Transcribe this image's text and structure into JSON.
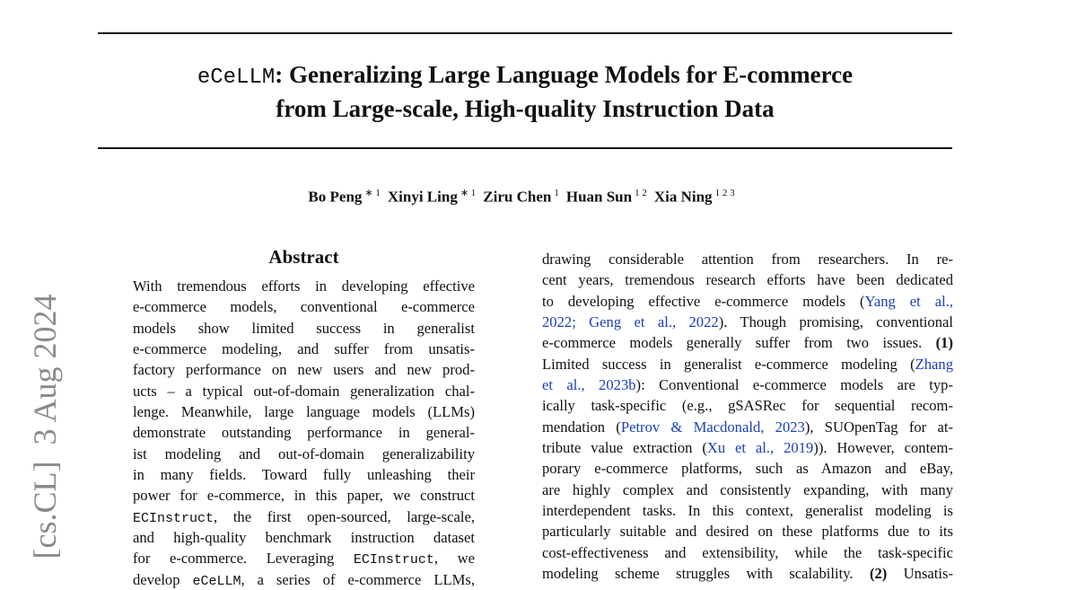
{
  "sidebar": "[cs.CL]  3 Aug 2024",
  "title": {
    "code": "eCeLLM",
    "line1": ": Generalizing Large Language Models for E-commerce",
    "line2": "from Large-scale, High-quality Instruction Data"
  },
  "authors": [
    {
      "name": "Bo Peng",
      "affil": "∗ 1"
    },
    {
      "name": "Xinyi Ling",
      "affil": "∗ 1"
    },
    {
      "name": "Ziru Chen",
      "affil": "1"
    },
    {
      "name": "Huan Sun",
      "affil": "1 2"
    },
    {
      "name": "Xia Ning",
      "affil": "1 2 3"
    }
  ],
  "abstract": {
    "heading": "Abstract",
    "lines": [
      [
        "With tremendous efforts in developing effective"
      ],
      [
        "e-commerce models, conventional e-commerce"
      ],
      [
        "models show limited success in generalist"
      ],
      [
        "e-commerce modeling, and suffer from unsatis-"
      ],
      [
        "factory performance on new users and new prod-"
      ],
      [
        "ucts – a typical out-of-domain generalization chal-"
      ],
      [
        "lenge. Meanwhile, large language models (LLMs)"
      ],
      [
        "demonstrate outstanding performance in general-"
      ],
      [
        "ist modeling and out-of-domain generalizability"
      ],
      [
        "in many fields.  Toward fully unleashing their"
      ],
      [
        "power for e-commerce, in this paper, we construct"
      ],
      [
        {
          "code": "ECInstruct"
        },
        ", the first open-sourced, large-scale,"
      ],
      [
        "and high-quality benchmark instruction dataset"
      ],
      [
        "for e-commerce.  Leveraging ",
        {
          "code": "ECInstruct"
        },
        ", we"
      ],
      [
        "develop ",
        {
          "code": "eCeLLM"
        },
        ", a series of e-commerce LLMs,"
      ]
    ]
  },
  "body": {
    "lines": [
      [
        "drawing considerable attention from researchers.  In re-"
      ],
      [
        "cent years, tremendous research efforts have been dedicated"
      ],
      [
        "to developing effective e-commerce models (",
        {
          "link": "Yang et al.,"
        }
      ],
      [
        {
          "link": "2022; Geng et al., 2022"
        },
        "). Though promising, conventional"
      ],
      [
        "e-commerce models generally suffer from two issues. ",
        {
          "bold": "(1)"
        }
      ],
      [
        "Limited success in generalist e-commerce modeling (",
        {
          "link": "Zhang"
        }
      ],
      [
        {
          "link": "et al., 2023b"
        },
        "): Conventional e-commerce models are typ-"
      ],
      [
        "ically task-specific (e.g., gSASRec for sequential recom-"
      ],
      [
        "mendation (",
        {
          "link": "Petrov & Macdonald, 2023"
        },
        "), SUOpenTag for at-"
      ],
      [
        "tribute value extraction (",
        {
          "link": "Xu et al., 2019"
        },
        ")). However, contem-"
      ],
      [
        "porary e-commerce platforms, such as Amazon and eBay,"
      ],
      [
        "are highly complex and consistently expanding, with many"
      ],
      [
        "interdependent tasks. In this context, generalist modeling is"
      ],
      [
        "particularly suitable and desired on these platforms due to its"
      ],
      [
        "cost-effectiveness and extensibility, while the task-specific"
      ],
      [
        "modeling scheme struggles with scalability.  ",
        {
          "bold": "(2)"
        },
        " Unsatis-"
      ]
    ]
  }
}
